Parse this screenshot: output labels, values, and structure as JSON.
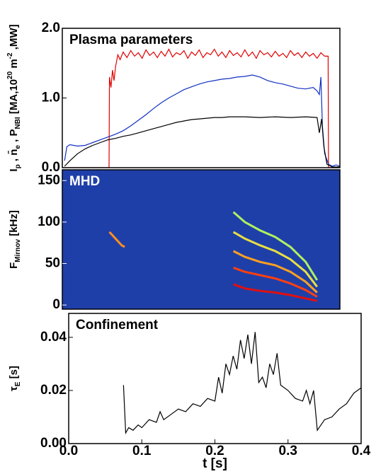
{
  "chart_data": [
    {
      "type": "line",
      "title": "Plasma parameters",
      "ylabel": [
        "I",
        {
          "sub": "p"
        },
        " , n̄",
        {
          "sub": "e"
        },
        " , P",
        {
          "sub": "NBI"
        },
        " [MA,10",
        {
          "sup": "20"
        },
        " m",
        {
          "sup": "-2"
        },
        " ,MW]"
      ],
      "xlim": [
        0,
        0.365
      ],
      "ylim": [
        0,
        2.0
      ],
      "yticks": [
        {
          "value": 0,
          "label": "0.0"
        },
        {
          "value": 1,
          "label": "1.0"
        },
        {
          "value": 2,
          "label": "2.0"
        }
      ],
      "series": [
        {
          "color": "#e00000",
          "x": [
            0,
            0.0615,
            0.062,
            0.064,
            0.066,
            0.068,
            0.07,
            0.073,
            0.076,
            0.08,
            0.085,
            0.09,
            0.095,
            0.1,
            0.105,
            0.11,
            0.115,
            0.12,
            0.125,
            0.13,
            0.135,
            0.14,
            0.145,
            0.15,
            0.155,
            0.16,
            0.165,
            0.17,
            0.175,
            0.18,
            0.185,
            0.19,
            0.195,
            0.2,
            0.205,
            0.21,
            0.215,
            0.22,
            0.225,
            0.23,
            0.235,
            0.24,
            0.245,
            0.25,
            0.255,
            0.26,
            0.265,
            0.27,
            0.275,
            0.28,
            0.285,
            0.29,
            0.295,
            0.3,
            0.305,
            0.31,
            0.315,
            0.32,
            0.325,
            0.33,
            0.335,
            0.34,
            0.345,
            0.3495,
            0.35,
            0.365
          ],
          "values": [
            0,
            0,
            1.3,
            1.15,
            1.4,
            1.25,
            1.45,
            1.62,
            1.55,
            1.66,
            1.58,
            1.68,
            1.6,
            1.65,
            1.57,
            1.69,
            1.61,
            1.66,
            1.58,
            1.67,
            1.6,
            1.7,
            1.59,
            1.65,
            1.62,
            1.68,
            1.57,
            1.66,
            1.61,
            1.69,
            1.58,
            1.65,
            1.62,
            1.7,
            1.6,
            1.66,
            1.58,
            1.68,
            1.61,
            1.65,
            1.59,
            1.69,
            1.6,
            1.66,
            1.57,
            1.68,
            1.62,
            1.65,
            1.59,
            1.67,
            1.6,
            1.64,
            1.58,
            1.68,
            1.61,
            1.65,
            1.58,
            1.66,
            1.6,
            1.64,
            1.57,
            1.65,
            1.6,
            1.6,
            0,
            0
          ]
        },
        {
          "color": "#1030c0",
          "x": [
            0.003,
            0.006,
            0.01,
            0.02,
            0.03,
            0.04,
            0.05,
            0.06,
            0.07,
            0.08,
            0.09,
            0.1,
            0.11,
            0.12,
            0.13,
            0.14,
            0.15,
            0.16,
            0.17,
            0.18,
            0.19,
            0.2,
            0.21,
            0.22,
            0.23,
            0.24,
            0.25,
            0.26,
            0.27,
            0.28,
            0.29,
            0.3,
            0.31,
            0.32,
            0.33,
            0.335,
            0.338,
            0.34,
            0.342,
            0.345,
            0.35,
            0.355,
            0.36,
            0.365
          ],
          "values": [
            0.1,
            0.3,
            0.33,
            0.31,
            0.32,
            0.36,
            0.4,
            0.44,
            0.48,
            0.53,
            0.6,
            0.68,
            0.76,
            0.85,
            0.93,
            1.0,
            1.06,
            1.12,
            1.16,
            1.2,
            1.23,
            1.25,
            1.27,
            1.28,
            1.3,
            1.31,
            1.33,
            1.3,
            1.25,
            1.22,
            1.2,
            1.17,
            1.14,
            1.13,
            1.15,
            1.1,
            1.05,
            1.3,
            0.6,
            0.2,
            0.05,
            0.02,
            0.04,
            0.02
          ]
        },
        {
          "color": "#000000",
          "x": [
            0.003,
            0.01,
            0.02,
            0.03,
            0.04,
            0.05,
            0.06,
            0.07,
            0.08,
            0.09,
            0.1,
            0.11,
            0.12,
            0.13,
            0.14,
            0.15,
            0.16,
            0.17,
            0.18,
            0.19,
            0.2,
            0.21,
            0.22,
            0.24,
            0.26,
            0.28,
            0.3,
            0.32,
            0.335,
            0.338,
            0.341,
            0.344,
            0.348,
            0.355,
            0.365
          ],
          "values": [
            0.02,
            0.1,
            0.2,
            0.27,
            0.32,
            0.36,
            0.4,
            0.42,
            0.45,
            0.47,
            0.5,
            0.53,
            0.56,
            0.59,
            0.62,
            0.65,
            0.67,
            0.69,
            0.7,
            0.71,
            0.72,
            0.72,
            0.73,
            0.73,
            0.72,
            0.73,
            0.72,
            0.73,
            0.72,
            0.5,
            0.7,
            0.3,
            0.05,
            0.01,
            0.01
          ]
        }
      ]
    },
    {
      "type": "spectrogram",
      "title": "MHD",
      "background": "#1f3fa8",
      "ylabel": [
        "F",
        {
          "sub": "Mirnov"
        },
        " [kHz]"
      ],
      "xlim": [
        0,
        0.365
      ],
      "ylim": [
        -5,
        163
      ],
      "yticks": [
        0,
        50,
        100,
        150
      ],
      "series": [
        {
          "color": "#ff9020",
          "x": [
            0.062,
            0.066,
            0.07,
            0.074,
            0.078,
            0.082
          ],
          "values": [
            88,
            84,
            80,
            76,
            72,
            70
          ]
        },
        {
          "color": "#e01010",
          "x": [
            0.225,
            0.24,
            0.26,
            0.28,
            0.3,
            0.32,
            0.335
          ],
          "values": [
            25,
            20,
            17,
            15,
            12,
            8,
            5
          ]
        },
        {
          "color": "#ff4010",
          "x": [
            0.225,
            0.24,
            0.26,
            0.28,
            0.3,
            0.32,
            0.335
          ],
          "values": [
            45,
            40,
            36,
            32,
            26,
            18,
            10
          ]
        },
        {
          "color": "#ffa020",
          "x": [
            0.225,
            0.24,
            0.26,
            0.28,
            0.3,
            0.32,
            0.335
          ],
          "values": [
            65,
            58,
            52,
            48,
            40,
            28,
            15
          ]
        },
        {
          "color": "#e8e040",
          "x": [
            0.225,
            0.24,
            0.26,
            0.28,
            0.3,
            0.32,
            0.335
          ],
          "values": [
            88,
            80,
            72,
            65,
            55,
            40,
            22
          ]
        },
        {
          "color": "#b0f060",
          "x": [
            0.225,
            0.24,
            0.26,
            0.28,
            0.3,
            0.32,
            0.335
          ],
          "values": [
            112,
            100,
            90,
            82,
            70,
            52,
            30
          ]
        }
      ]
    },
    {
      "type": "line",
      "title": "Confinement",
      "ylabel": [
        "τ",
        {
          "sub": "E"
        },
        " [s]"
      ],
      "xlabel": "t [s]",
      "xlim": [
        0,
        0.4
      ],
      "ylim": [
        0,
        0.049
      ],
      "xticks": [
        {
          "value": 0,
          "label": "0.0"
        },
        0.1,
        0.2,
        0.3,
        0.4
      ],
      "yticks": [
        {
          "value": 0,
          "label": "0.00"
        },
        {
          "value": 0.02,
          "label": "0.02"
        },
        {
          "value": 0.04,
          "label": "0.04"
        }
      ],
      "series": [
        {
          "color": "#000000",
          "x": [
            0.075,
            0.078,
            0.082,
            0.088,
            0.095,
            0.1,
            0.11,
            0.12,
            0.125,
            0.13,
            0.14,
            0.15,
            0.16,
            0.17,
            0.18,
            0.19,
            0.2,
            0.205,
            0.21,
            0.215,
            0.22,
            0.225,
            0.23,
            0.235,
            0.24,
            0.245,
            0.25,
            0.255,
            0.26,
            0.265,
            0.27,
            0.275,
            0.28,
            0.285,
            0.29,
            0.3,
            0.31,
            0.32,
            0.325,
            0.33,
            0.335,
            0.34,
            0.35,
            0.36,
            0.37,
            0.38,
            0.39,
            0.4
          ],
          "values": [
            0.022,
            0.004,
            0.006,
            0.005,
            0.007,
            0.006,
            0.009,
            0.008,
            0.012,
            0.009,
            0.011,
            0.013,
            0.012,
            0.015,
            0.014,
            0.017,
            0.016,
            0.025,
            0.019,
            0.03,
            0.026,
            0.033,
            0.028,
            0.039,
            0.032,
            0.041,
            0.03,
            0.042,
            0.023,
            0.025,
            0.021,
            0.03,
            0.026,
            0.034,
            0.022,
            0.02,
            0.017,
            0.016,
            0.02,
            0.015,
            0.02,
            0.005,
            0.009,
            0.01,
            0.013,
            0.015,
            0.019,
            0.021
          ]
        }
      ]
    }
  ]
}
